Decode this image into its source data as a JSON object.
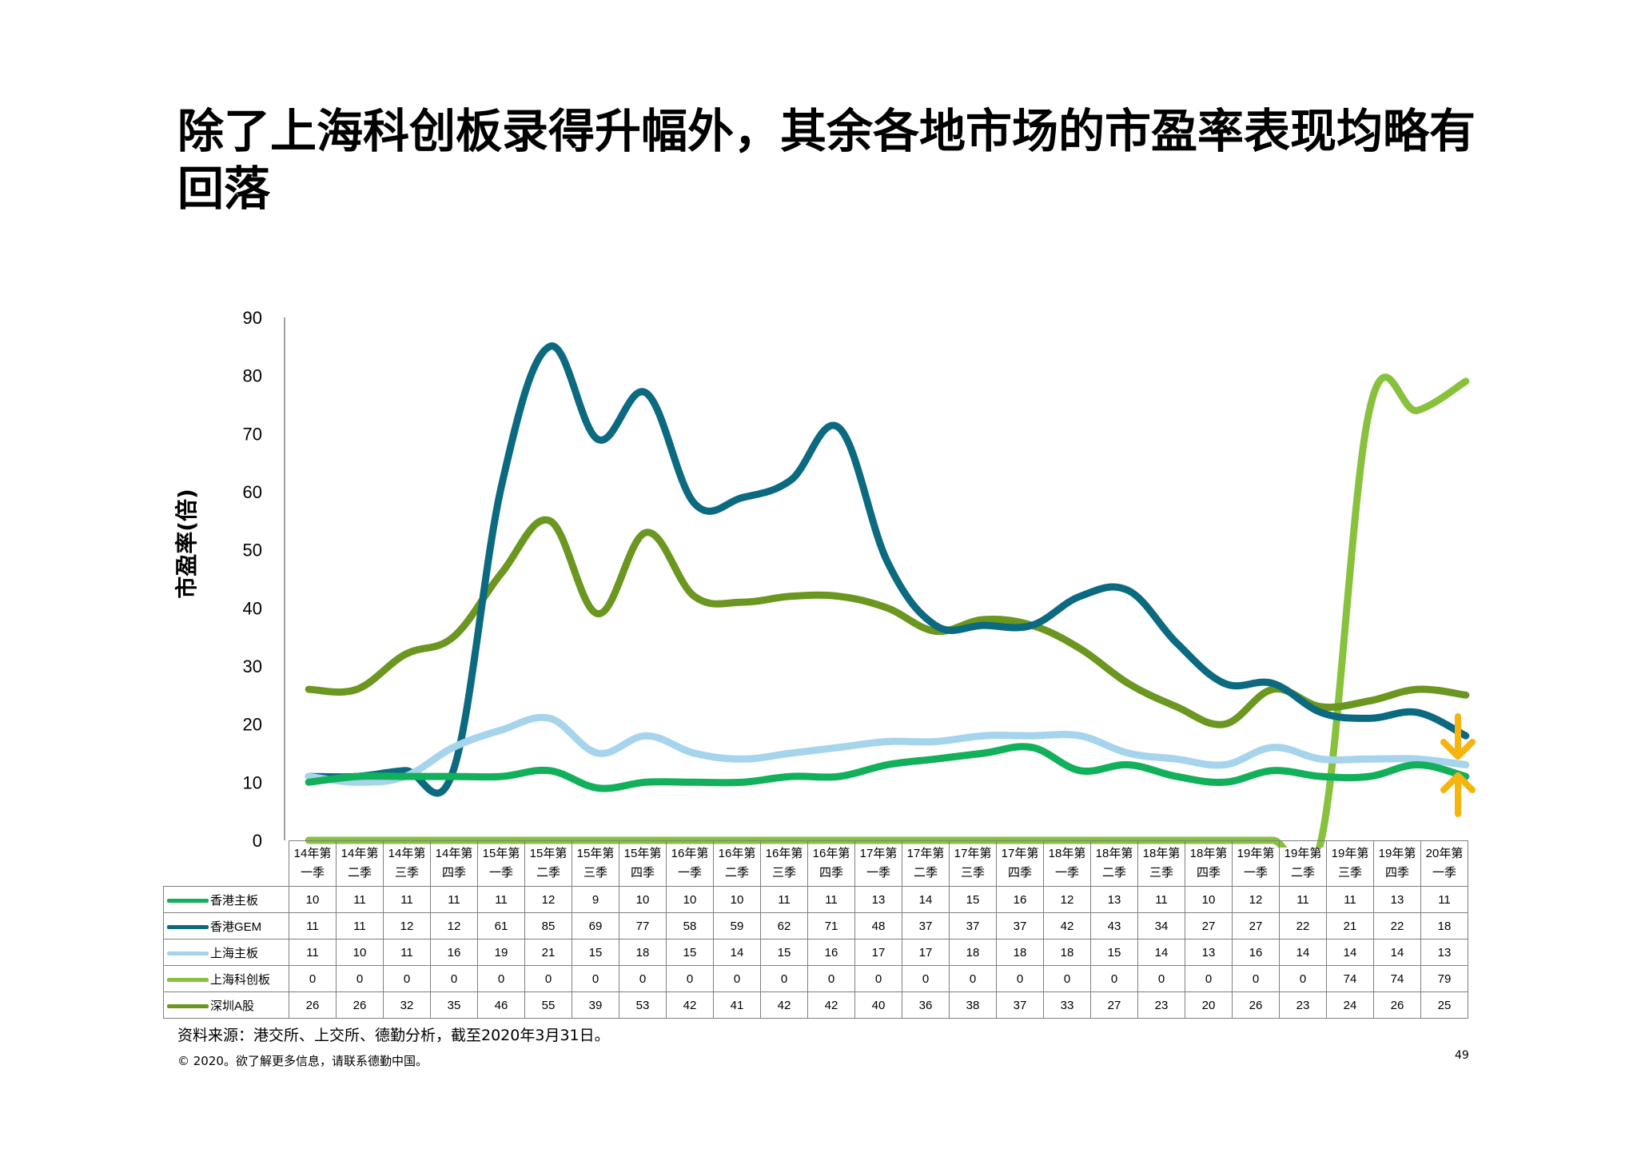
{
  "title": "除了上海科创板录得升幅外，其余各地市场的市盈率表现均略有回落",
  "footer": {
    "source": "资料来源：港交所、上交所、德勤分析，截至2020年3月31日。",
    "copyright": "© 2020。欲了解更多信息，请联系德勤中国。",
    "page_number": "49"
  },
  "colors": {
    "香港主板": "#12b05a",
    "香港GEM": "#0b6a80",
    "上海主板": "#a6d4ec",
    "上海科创板": "#88c23d",
    "深圳A股": "#6b961f",
    "arrow": "#f5b50e"
  },
  "chart_data": {
    "type": "line",
    "title": "除了上海科创板录得升幅外，其余各地市场的市盈率表现均略有回落",
    "xlabel": "",
    "ylabel": "市盈率(倍)",
    "ylim": [
      0,
      90
    ],
    "yticks": [
      0,
      10,
      20,
      30,
      40,
      50,
      60,
      70,
      80,
      90
    ],
    "grid": false,
    "legend": "table-left",
    "categories": [
      [
        "14年第",
        "一季"
      ],
      [
        "14年第",
        "二季"
      ],
      [
        "14年第",
        "三季"
      ],
      [
        "14年第",
        "四季"
      ],
      [
        "15年第",
        "一季"
      ],
      [
        "15年第",
        "二季"
      ],
      [
        "15年第",
        "三季"
      ],
      [
        "15年第",
        "四季"
      ],
      [
        "16年第",
        "一季"
      ],
      [
        "16年第",
        "二季"
      ],
      [
        "16年第",
        "三季"
      ],
      [
        "16年第",
        "四季"
      ],
      [
        "17年第",
        "一季"
      ],
      [
        "17年第",
        "二季"
      ],
      [
        "17年第",
        "三季"
      ],
      [
        "17年第",
        "四季"
      ],
      [
        "18年第",
        "一季"
      ],
      [
        "18年第",
        "二季"
      ],
      [
        "18年第",
        "三季"
      ],
      [
        "18年第",
        "四季"
      ],
      [
        "19年第",
        "一季"
      ],
      [
        "19年第",
        "二季"
      ],
      [
        "19年第",
        "三季"
      ],
      [
        "19年第",
        "四季"
      ],
      [
        "20年第",
        "一季"
      ]
    ],
    "series": [
      {
        "name": "香港主板",
        "values": [
          10,
          11,
          11,
          11,
          11,
          12,
          9,
          10,
          10,
          10,
          11,
          11,
          13,
          14,
          15,
          16,
          12,
          13,
          11,
          10,
          12,
          11,
          11,
          13,
          11
        ]
      },
      {
        "name": "香港GEM",
        "values": [
          11,
          11,
          12,
          12,
          61,
          85,
          69,
          77,
          58,
          59,
          62,
          71,
          48,
          37,
          37,
          37,
          42,
          43,
          34,
          27,
          27,
          22,
          21,
          22,
          18
        ]
      },
      {
        "name": "上海主板",
        "values": [
          11,
          10,
          11,
          16,
          19,
          21,
          15,
          18,
          15,
          14,
          15,
          16,
          17,
          17,
          18,
          18,
          18,
          15,
          14,
          13,
          16,
          14,
          14,
          14,
          13
        ]
      },
      {
        "name": "上海科创板",
        "values": [
          0,
          0,
          0,
          0,
          0,
          0,
          0,
          0,
          0,
          0,
          0,
          0,
          0,
          0,
          0,
          0,
          0,
          0,
          0,
          0,
          0,
          0,
          74,
          74,
          79
        ]
      },
      {
        "name": "深圳A股",
        "values": [
          26,
          26,
          32,
          35,
          46,
          55,
          39,
          53,
          42,
          41,
          42,
          42,
          40,
          36,
          38,
          37,
          33,
          27,
          23,
          20,
          26,
          23,
          24,
          26,
          25
        ]
      }
    ]
  }
}
